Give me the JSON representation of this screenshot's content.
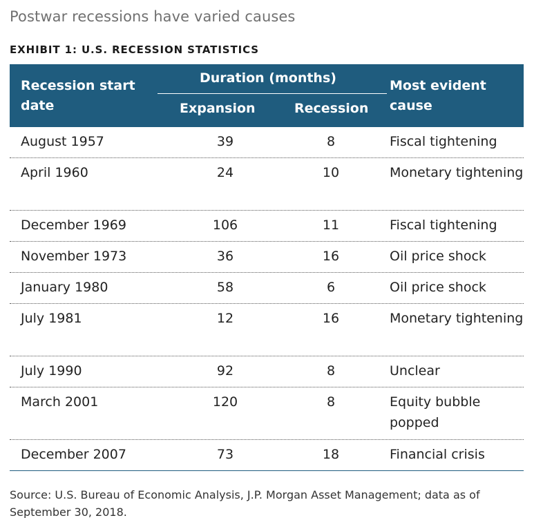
{
  "title": "Postwar recessions have varied causes",
  "exhibit": "EXHIBIT 1: U.S. RECESSION STATISTICS",
  "header": {
    "start_line1": "Recession start",
    "start_line2": "date",
    "duration": "Duration (months)",
    "expansion": "Expansion",
    "recession": "Recession",
    "cause_line1": "Most evident",
    "cause_line2": "cause"
  },
  "chart_data": {
    "type": "table",
    "title": "EXHIBIT 1: U.S. RECESSION STATISTICS",
    "columns": [
      "Recession start date",
      "Expansion",
      "Recession",
      "Most evident cause"
    ],
    "rows": [
      {
        "date": "August 1957",
        "expansion": "39",
        "recession": "8",
        "cause": "Fiscal tightening",
        "lines": 1
      },
      {
        "date": "April 1960",
        "expansion": "24",
        "recession": "10",
        "cause": "Monetary tightening",
        "lines": 2
      },
      {
        "date": "December 1969",
        "expansion": "106",
        "recession": "11",
        "cause": "Fiscal tightening",
        "lines": 1
      },
      {
        "date": "November 1973",
        "expansion": "36",
        "recession": "16",
        "cause": "Oil price shock",
        "lines": 1
      },
      {
        "date": "January 1980",
        "expansion": "58",
        "recession": "6",
        "cause": "Oil price shock",
        "lines": 1
      },
      {
        "date": "July 1981",
        "expansion": "12",
        "recession": "16",
        "cause": "Monetary tightening",
        "lines": 2
      },
      {
        "date": "July 1990",
        "expansion": "92",
        "recession": "8",
        "cause": "Unclear",
        "lines": 1
      },
      {
        "date": "March 2001",
        "expansion": "120",
        "recession": "8",
        "cause": "Equity bubble popped",
        "lines": 2
      },
      {
        "date": "December 2007",
        "expansion": "73",
        "recession": "18",
        "cause": "Financial crisis",
        "lines": 1
      }
    ]
  },
  "source": "Source: U.S. Bureau of Economic Analysis, J.P. Morgan Asset Management; data as of September 30, 2018.",
  "colors": {
    "header_bg": "#1f5c7e",
    "title": "#707070"
  }
}
